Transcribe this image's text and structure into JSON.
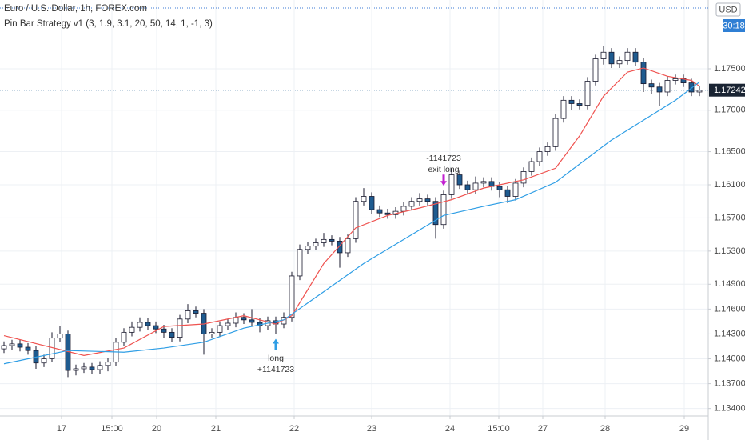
{
  "chart_data": {
    "type": "candlestick",
    "title": "Euro / U.S. Dollar, 1h, FOREX.com",
    "subtitle": "Pin Bar Strategy v1 (3, 1.9, 3.1, 20, 50, 14, 1, -1, 3)",
    "currency": "USD",
    "countdown": "30:18",
    "last_price": {
      "value": 1.17242,
      "label": "1.17242"
    },
    "up_color": "#ffffff",
    "down_color": "#1f5b8f",
    "border_color": "#1a1a2e",
    "grid": true,
    "xlim": [
      -0.5,
      88.1
    ],
    "ylim": [
      1.1331,
      1.1833
    ],
    "xticks": [
      {
        "value": 7.2,
        "label": "17"
      },
      {
        "value": 13.5,
        "label": "15:00"
      },
      {
        "value": 19.1,
        "label": "20"
      },
      {
        "value": 26.5,
        "label": "21"
      },
      {
        "value": 36.3,
        "label": "22"
      },
      {
        "value": 46,
        "label": "23"
      },
      {
        "value": 55.8,
        "label": "24"
      },
      {
        "value": 61.9,
        "label": "15:00"
      },
      {
        "value": 67.4,
        "label": "27"
      },
      {
        "value": 75.2,
        "label": "28"
      },
      {
        "value": 85.1,
        "label": "29"
      }
    ],
    "yticks": [
      {
        "value": 1.134,
        "label": "1.13400"
      },
      {
        "value": 1.137,
        "label": "1.13700"
      },
      {
        "value": 1.14,
        "label": "1.14000"
      },
      {
        "value": 1.143,
        "label": "1.14300"
      },
      {
        "value": 1.146,
        "label": "1.14600"
      },
      {
        "value": 1.149,
        "label": "1.14900"
      },
      {
        "value": 1.153,
        "label": "1.15300"
      },
      {
        "value": 1.157,
        "label": "1.15700"
      },
      {
        "value": 1.161,
        "label": "1.16100"
      },
      {
        "value": 1.165,
        "label": "1.16500"
      },
      {
        "value": 1.17,
        "label": "1.17000"
      },
      {
        "value": 1.175,
        "label": "1.17500"
      }
    ],
    "candles": {
      "open": [
        1.1412,
        1.1416,
        1.1418,
        1.1414,
        1.141,
        1.1395,
        1.14,
        1.1425,
        1.143,
        1.1386,
        1.1388,
        1.139,
        1.1387,
        1.1392,
        1.1396,
        1.142,
        1.1432,
        1.1438,
        1.1444,
        1.144,
        1.1436,
        1.1432,
        1.1426,
        1.1448,
        1.1458,
        1.1455,
        1.143,
        1.1432,
        1.144,
        1.1443,
        1.145,
        1.1447,
        1.1444,
        1.144,
        1.1446,
        1.1442,
        1.145,
        1.15,
        1.1532,
        1.1536,
        1.154,
        1.1544,
        1.1542,
        1.1528,
        1.1545,
        1.159,
        1.1596,
        1.158,
        1.1576,
        1.1574,
        1.1578,
        1.1584,
        1.159,
        1.1593,
        1.159,
        1.1562,
        1.1598,
        1.1622,
        1.161,
        1.1604,
        1.1612,
        1.1614,
        1.1608,
        1.1604,
        1.1596,
        1.1612,
        1.1626,
        1.1638,
        1.165,
        1.1656,
        1.169,
        1.1712,
        1.1708,
        1.1706,
        1.1735,
        1.1762,
        1.177,
        1.1756,
        1.176,
        1.177,
        1.1758,
        1.1732,
        1.1728,
        1.1722,
        1.1736,
        1.1738,
        1.1733,
        1.1722
      ],
      "high": [
        1.1421,
        1.1423,
        1.1423,
        1.1419,
        1.1415,
        1.1405,
        1.1432,
        1.144,
        1.1434,
        1.1393,
        1.1395,
        1.1395,
        1.1397,
        1.1401,
        1.1425,
        1.1437,
        1.1445,
        1.145,
        1.1449,
        1.1445,
        1.1441,
        1.1437,
        1.1453,
        1.1466,
        1.1463,
        1.146,
        1.1437,
        1.1445,
        1.1448,
        1.1456,
        1.1455,
        1.146,
        1.1449,
        1.1451,
        1.1451,
        1.1456,
        1.1505,
        1.1538,
        1.1541,
        1.1545,
        1.1552,
        1.1549,
        1.1547,
        1.155,
        1.1595,
        1.1606,
        1.1601,
        1.1585,
        1.1581,
        1.1583,
        1.1589,
        1.1595,
        1.16,
        1.1598,
        1.1595,
        1.1603,
        1.163,
        1.1627,
        1.1615,
        1.162,
        1.1619,
        1.1619,
        1.1613,
        1.1609,
        1.1617,
        1.1631,
        1.1643,
        1.1655,
        1.1661,
        1.1695,
        1.1717,
        1.1717,
        1.1713,
        1.174,
        1.1767,
        1.1778,
        1.1775,
        1.1765,
        1.1775,
        1.1775,
        1.1763,
        1.1737,
        1.1733,
        1.1741,
        1.1743,
        1.1743,
        1.1738,
        1.1729
      ],
      "low": [
        1.1407,
        1.1411,
        1.1409,
        1.1405,
        1.1388,
        1.139,
        1.1396,
        1.142,
        1.1378,
        1.138,
        1.1383,
        1.1382,
        1.1382,
        1.1385,
        1.1391,
        1.1415,
        1.1427,
        1.1433,
        1.1435,
        1.1431,
        1.1425,
        1.142,
        1.1421,
        1.1443,
        1.145,
        1.1405,
        1.1425,
        1.1427,
        1.1435,
        1.1438,
        1.1442,
        1.1439,
        1.1432,
        1.1435,
        1.143,
        1.1437,
        1.1445,
        1.1495,
        1.1527,
        1.1531,
        1.1535,
        1.1537,
        1.151,
        1.1523,
        1.154,
        1.1585,
        1.1575,
        1.1571,
        1.1569,
        1.1569,
        1.1573,
        1.1579,
        1.1585,
        1.1585,
        1.1545,
        1.1557,
        1.1593,
        1.1605,
        1.1599,
        1.1599,
        1.1607,
        1.1603,
        1.1595,
        1.1588,
        1.1591,
        1.1607,
        1.1621,
        1.1633,
        1.1645,
        1.1651,
        1.1685,
        1.17,
        1.1701,
        1.1701,
        1.173,
        1.1755,
        1.1751,
        1.1751,
        1.1755,
        1.1753,
        1.1722,
        1.172,
        1.1705,
        1.1717,
        1.1731,
        1.1728,
        1.1717,
        1.1717
      ],
      "close": [
        1.1416,
        1.1418,
        1.1414,
        1.141,
        1.1395,
        1.14,
        1.1425,
        1.143,
        1.1386,
        1.1388,
        1.139,
        1.1387,
        1.1392,
        1.1396,
        1.142,
        1.1432,
        1.1438,
        1.1444,
        1.144,
        1.1436,
        1.1432,
        1.1426,
        1.1448,
        1.1458,
        1.1455,
        1.143,
        1.1432,
        1.144,
        1.1443,
        1.145,
        1.1447,
        1.1444,
        1.144,
        1.1446,
        1.1442,
        1.145,
        1.15,
        1.1532,
        1.1536,
        1.154,
        1.1544,
        1.1542,
        1.1528,
        1.1545,
        1.159,
        1.1596,
        1.158,
        1.1576,
        1.1574,
        1.1578,
        1.1584,
        1.159,
        1.1593,
        1.159,
        1.1562,
        1.1598,
        1.1622,
        1.161,
        1.1604,
        1.1612,
        1.1614,
        1.1608,
        1.1604,
        1.1596,
        1.1612,
        1.1626,
        1.1638,
        1.165,
        1.1656,
        1.169,
        1.1712,
        1.1708,
        1.1706,
        1.1735,
        1.1762,
        1.177,
        1.1756,
        1.176,
        1.177,
        1.1758,
        1.1732,
        1.1728,
        1.1722,
        1.1736,
        1.1738,
        1.1733,
        1.1722,
        1.1724
      ]
    },
    "series": [
      {
        "color": "#ef5350",
        "x": [
          0,
          10,
          15,
          20,
          25,
          30,
          34,
          36,
          40,
          44,
          48,
          52,
          56,
          60,
          65,
          69,
          72,
          75,
          78,
          80,
          83,
          86,
          87
        ],
        "values": [
          1.1428,
          1.1404,
          1.1413,
          1.1439,
          1.1442,
          1.1452,
          1.1442,
          1.1452,
          1.1515,
          1.1558,
          1.1573,
          1.1582,
          1.1592,
          1.1606,
          1.1616,
          1.163,
          1.1669,
          1.1717,
          1.1746,
          1.1751,
          1.1741,
          1.1736,
          1.1729
        ]
      },
      {
        "color": "#2f9ee5",
        "x": [
          0,
          8,
          15,
          20,
          25,
          30,
          35,
          40,
          45,
          50,
          55,
          60,
          64,
          69,
          72,
          76,
          80,
          84,
          87
        ],
        "values": [
          1.1394,
          1.141,
          1.1408,
          1.1413,
          1.142,
          1.1437,
          1.1447,
          1.1481,
          1.1515,
          1.1544,
          1.1573,
          1.1584,
          1.1592,
          1.1613,
          1.1635,
          1.1664,
          1.1688,
          1.1712,
          1.1734
        ]
      }
    ],
    "annotations": [
      {
        "candle": 34,
        "color": "#2f9ee5",
        "lines": [
          "long",
          "+1141723"
        ]
      },
      {
        "candle": 55,
        "color": "#c21fd1",
        "lines": [
          "-1141723",
          "exit long"
        ]
      }
    ]
  }
}
